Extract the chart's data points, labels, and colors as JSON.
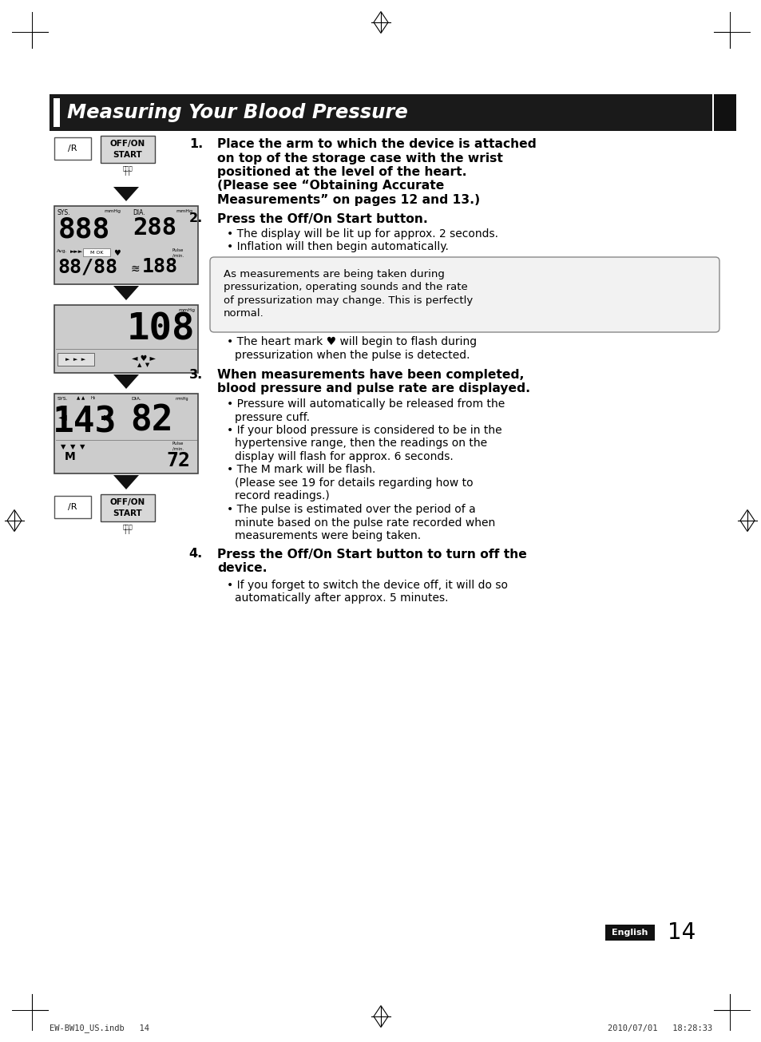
{
  "title": "Measuring Your Blood Pressure",
  "page_number": "14",
  "lang_label": "English",
  "footer_left": "EW-BW10_US.indb   14",
  "footer_right": "2010/07/01   18:28:33",
  "bg_color": "#ffffff",
  "header_bg": "#1a1a1a",
  "header_text_color": "#ffffff",
  "body_text_color": "#000000",
  "note_box_bg": "#f2f2f2",
  "section1_lines": [
    "Place the arm to which the device is attached",
    "on top of the storage case with the wrist",
    "positioned at the level of the heart.",
    "(Please see “Obtaining Accurate",
    "Measurements” on pages 12 and 13.)"
  ],
  "section2_bold": "Press the Off/On Start button.",
  "section2_bullets": [
    "The display will be lit up for approx. 2 seconds.",
    "Inflation will then begin automatically."
  ],
  "note_text": [
    "As measurements are being taken during",
    "pressurization, operating sounds and the rate",
    "of pressurization may change. This is perfectly",
    "normal."
  ],
  "heart_line1": "The heart mark ♥ will begin to flash during",
  "heart_line2": "pressurization when the pulse is detected.",
  "section3_line1": "When measurements have been completed,",
  "section3_line2": "blood pressure and pulse rate are displayed.",
  "section3_bullets": [
    [
      "Pressure will automatically be released from the",
      "pressure cuff."
    ],
    [
      "If your blood pressure is considered to be in the",
      "hypertensive range, then the readings on the",
      "display will flash for approx. 6 seconds."
    ],
    [
      "The M mark will be flash.",
      "(Please see 19 for details regarding how to",
      "record readings.)"
    ],
    [
      "The pulse is estimated over the period of a",
      "minute based on the pulse rate recorded when",
      "measurements were being taken."
    ]
  ],
  "section4_line1": "Press the Off/On Start button to turn off the",
  "section4_line2": "device.",
  "section4_bullets": [
    [
      "If you forget to switch the device off, it will do so",
      "automatically after approx. 5 minutes."
    ]
  ]
}
